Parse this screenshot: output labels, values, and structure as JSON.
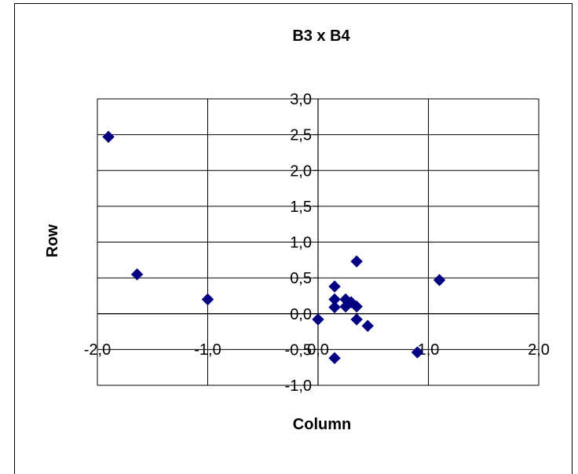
{
  "chart_data": {
    "type": "scatter",
    "title": "B3 x B4",
    "xlabel": "Column",
    "ylabel": "Row",
    "xlim": [
      -2.0,
      2.0
    ],
    "ylim": [
      -1.0,
      3.0
    ],
    "x_ticks": [
      "-2,0",
      "-1,0",
      "0,0",
      "1,0",
      "2,0"
    ],
    "y_ticks": [
      "3,0",
      "2,5",
      "2,0",
      "1,5",
      "1,0",
      "0,5",
      "0,0",
      "-0,5",
      "-1,0"
    ],
    "grid": true,
    "marker": "diamond",
    "marker_color": "#000080",
    "points": [
      {
        "x": -1.9,
        "y": 2.47
      },
      {
        "x": -1.64,
        "y": 0.55
      },
      {
        "x": -1.0,
        "y": 0.2
      },
      {
        "x": 0.0,
        "y": -0.08
      },
      {
        "x": 0.15,
        "y": 0.38
      },
      {
        "x": 0.15,
        "y": 0.2
      },
      {
        "x": 0.15,
        "y": 0.09
      },
      {
        "x": 0.15,
        "y": -0.62
      },
      {
        "x": 0.25,
        "y": 0.2
      },
      {
        "x": 0.25,
        "y": 0.1
      },
      {
        "x": 0.3,
        "y": 0.16
      },
      {
        "x": 0.35,
        "y": 0.73
      },
      {
        "x": 0.35,
        "y": 0.1
      },
      {
        "x": 0.35,
        "y": -0.08
      },
      {
        "x": 0.45,
        "y": -0.17
      },
      {
        "x": 0.9,
        "y": -0.54
      },
      {
        "x": 1.1,
        "y": 0.47
      }
    ]
  }
}
